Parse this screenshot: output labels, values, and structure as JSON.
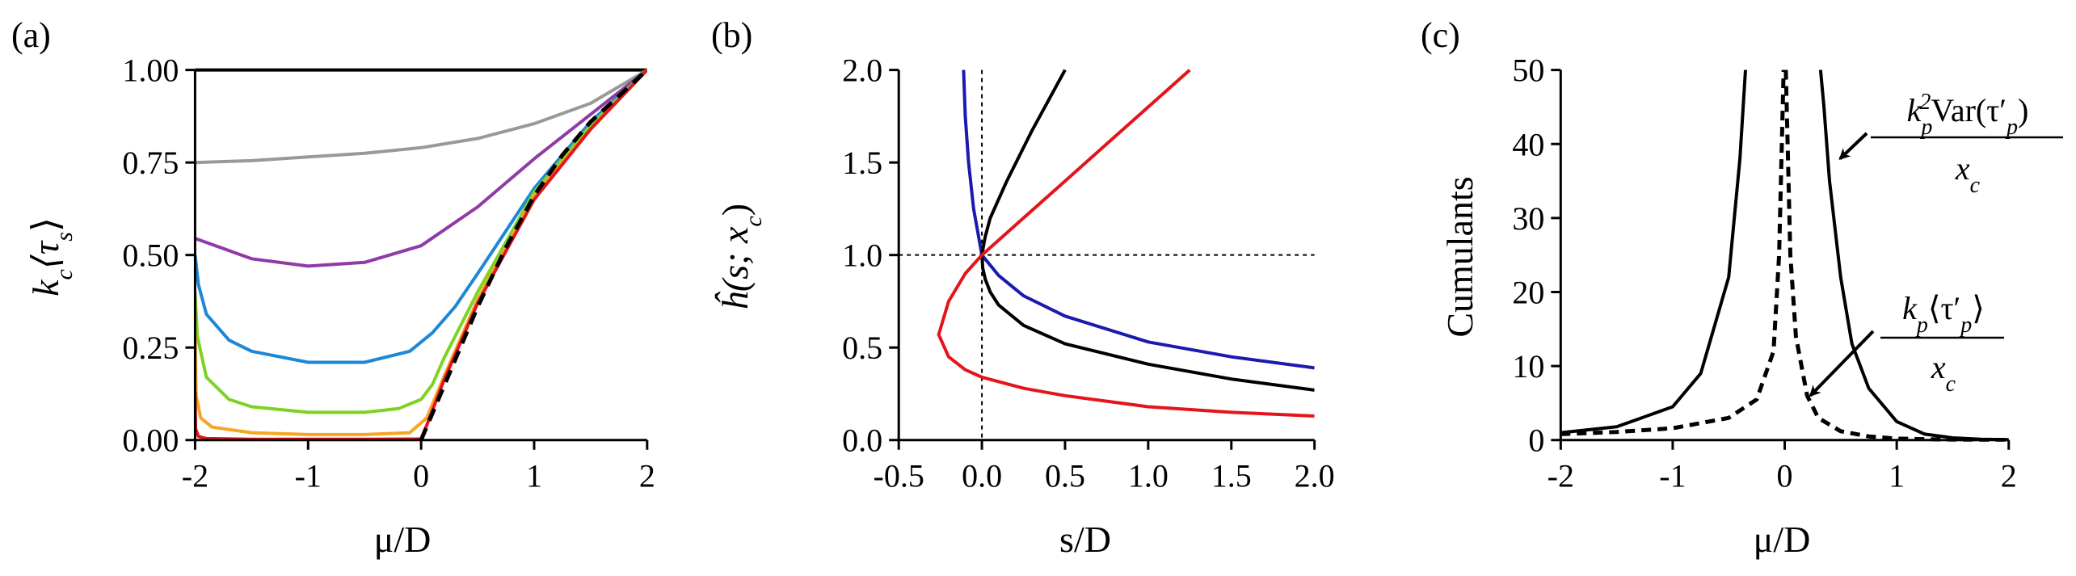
{
  "chart_data": [
    {
      "panel": "(a)",
      "type": "line",
      "xlabel": "μ/D",
      "ylabel": "k_c⟨τ_s⟩",
      "xlim": [
        -2,
        2
      ],
      "ylim": [
        0,
        1
      ],
      "xticks": [
        "-2",
        "-1",
        "0",
        "1",
        "2"
      ],
      "yticks": [
        "0.00",
        "0.25",
        "0.50",
        "0.75",
        "1.00"
      ],
      "grid": false,
      "series": [
        {
          "color": "#000000",
          "style": "solid",
          "x": [
            -2,
            -1.5,
            -1,
            -0.5,
            0,
            0.5,
            1,
            1.5,
            2
          ],
          "y": [
            1.0,
            1.0,
            1.0,
            1.0,
            1.0,
            1.0,
            1.0,
            1.0,
            1.0
          ]
        },
        {
          "color": "#999999",
          "style": "solid",
          "x": [
            -2,
            -1.5,
            -1,
            -0.5,
            0,
            0.5,
            1,
            1.5,
            2
          ],
          "y": [
            0.75,
            0.755,
            0.765,
            0.775,
            0.79,
            0.815,
            0.855,
            0.91,
            1.0
          ]
        },
        {
          "color": "#8e3aa7",
          "style": "solid",
          "x": [
            -2,
            -1.5,
            -1,
            -0.5,
            0,
            0.5,
            1,
            1.5,
            2
          ],
          "y": [
            0.545,
            0.49,
            0.47,
            0.48,
            0.525,
            0.63,
            0.76,
            0.88,
            1.0
          ]
        },
        {
          "color": "#1e88d6",
          "style": "solid",
          "x": [
            -2,
            -1.97,
            -1.9,
            -1.7,
            -1.5,
            -1,
            -0.5,
            -0.1,
            0.1,
            0.3,
            0.5,
            1,
            1.5,
            2
          ],
          "y": [
            0.5,
            0.42,
            0.34,
            0.27,
            0.24,
            0.21,
            0.21,
            0.24,
            0.29,
            0.36,
            0.45,
            0.68,
            0.86,
            1.0
          ]
        },
        {
          "color": "#7ed321",
          "style": "solid",
          "x": [
            -2,
            -1.98,
            -1.9,
            -1.7,
            -1.5,
            -1,
            -0.5,
            -0.2,
            0,
            0.1,
            0.2,
            0.5,
            1,
            1.5,
            2
          ],
          "y": [
            0.4,
            0.28,
            0.17,
            0.11,
            0.09,
            0.075,
            0.075,
            0.085,
            0.11,
            0.15,
            0.22,
            0.4,
            0.67,
            0.85,
            1.0
          ]
        },
        {
          "color": "#f5a623",
          "style": "solid",
          "x": [
            -2,
            -1.99,
            -1.95,
            -1.85,
            -1.5,
            -1,
            -0.5,
            -0.1,
            0.05,
            0.2,
            0.5,
            1,
            1.5,
            2
          ],
          "y": [
            0.3,
            0.12,
            0.06,
            0.035,
            0.02,
            0.015,
            0.015,
            0.02,
            0.06,
            0.17,
            0.38,
            0.66,
            0.84,
            1.0
          ]
        },
        {
          "color": "#e3151b",
          "style": "solid",
          "x": [
            -2,
            -1.995,
            -1.97,
            -1.9,
            -1.5,
            -1,
            -0.5,
            0,
            0.05,
            0.2,
            0.5,
            1,
            1.5,
            2
          ],
          "y": [
            0.13,
            0.03,
            0.01,
            0.004,
            0.002,
            0.002,
            0.002,
            0.003,
            0.04,
            0.16,
            0.37,
            0.65,
            0.84,
            1.0
          ]
        },
        {
          "color": "#000000",
          "style": "dashed",
          "x": [
            0,
            0.25,
            0.5,
            0.75,
            1,
            1.25,
            1.5,
            1.75,
            2
          ],
          "y": [
            0,
            0.18,
            0.36,
            0.52,
            0.66,
            0.77,
            0.86,
            0.93,
            1.0
          ]
        }
      ]
    },
    {
      "panel": "(b)",
      "type": "line",
      "xlabel": "s/D",
      "ylabel": "ĥ(s; x_c)",
      "xlim": [
        -0.5,
        2
      ],
      "ylim": [
        0,
        2
      ],
      "xticks": [
        "-0.5",
        "0.0",
        "0.5",
        "1.0",
        "1.5",
        "2.0"
      ],
      "yticks": [
        "0.0",
        "0.5",
        "1.0",
        "1.5",
        "2.0"
      ],
      "grid": false,
      "reference_lines": {
        "hline": 1.0,
        "vline": 0.0
      },
      "series": [
        {
          "color": "#1a1ab0",
          "style": "solid",
          "x": [
            -0.11,
            -0.1,
            -0.08,
            -0.05,
            0,
            0.1,
            0.25,
            0.5,
            1,
            1.5,
            2
          ],
          "y": [
            2.0,
            1.75,
            1.5,
            1.25,
            1.0,
            0.89,
            0.78,
            0.67,
            0.53,
            0.45,
            0.39
          ]
        },
        {
          "color": "#000000",
          "style": "solid",
          "x": [
            0.5,
            0.3,
            0.15,
            0.05,
            0.02,
            0.01,
            0.0,
            0.005,
            0.02,
            0.05,
            0.1,
            0.25,
            0.5,
            1,
            1.5,
            2
          ],
          "y": [
            2.0,
            1.67,
            1.4,
            1.2,
            1.1,
            1.05,
            1.0,
            0.93,
            0.87,
            0.8,
            0.73,
            0.62,
            0.52,
            0.41,
            0.33,
            0.27
          ]
        },
        {
          "color": "#e3151b",
          "style": "solid",
          "x": [
            1.25,
            1.0,
            0.75,
            0.5,
            0.25,
            0.1,
            0.0,
            -0.1,
            -0.2,
            -0.26,
            -0.2,
            -0.1,
            0,
            0.25,
            0.5,
            1,
            1.5,
            2
          ],
          "y": [
            2.0,
            1.8,
            1.6,
            1.4,
            1.2,
            1.08,
            1.0,
            0.9,
            0.75,
            0.57,
            0.45,
            0.38,
            0.34,
            0.28,
            0.24,
            0.18,
            0.15,
            0.13
          ]
        }
      ]
    },
    {
      "panel": "(c)",
      "type": "line",
      "xlabel": "μ/D",
      "ylabel": "Cumulants",
      "xlim": [
        -2,
        2
      ],
      "ylim": [
        0,
        50
      ],
      "xticks": [
        "-2",
        "-1",
        "0",
        "1",
        "2"
      ],
      "yticks": [
        "0",
        "10",
        "20",
        "30",
        "40",
        "50"
      ],
      "grid": false,
      "series": [
        {
          "color": "#000000",
          "style": "solid",
          "x": [
            -2,
            -1.5,
            -1,
            -0.75,
            -0.5,
            -0.4,
            -0.35
          ],
          "y": [
            1,
            1.8,
            4.5,
            9,
            22,
            38,
            50
          ]
        },
        {
          "color": "#000000",
          "style": "solid",
          "x": [
            0.32,
            0.35,
            0.4,
            0.5,
            0.6,
            0.75,
            1,
            1.25,
            1.5,
            1.75,
            2
          ],
          "y": [
            50,
            45,
            35,
            22,
            13,
            7,
            2.5,
            0.8,
            0.3,
            0.1,
            0.05
          ]
        },
        {
          "color": "#000000",
          "style": "dashed",
          "x": [
            -2,
            -1.5,
            -1,
            -0.5,
            -0.25,
            -0.1,
            -0.05,
            -0.01
          ],
          "y": [
            0.8,
            1.1,
            1.6,
            3,
            5.5,
            12,
            25,
            50
          ]
        },
        {
          "color": "#000000",
          "style": "dashed",
          "x": [
            0.01,
            0.05,
            0.1,
            0.2,
            0.3,
            0.5,
            0.75,
            1,
            1.5,
            2
          ],
          "y": [
            50,
            25,
            14,
            6,
            3,
            1.2,
            0.5,
            0.2,
            0.05,
            0.02
          ]
        }
      ],
      "annotations": [
        {
          "text_parts": [
            "k",
            "p",
            "2",
            "Var(τ′",
            "p",
            ")"
          ],
          "denominator": "x_c",
          "points_to_x": 0.45,
          "points_to_y": 38
        },
        {
          "text_parts": [
            "k",
            "p",
            "⟨τ′",
            "p",
            "⟩"
          ],
          "denominator": "x_c",
          "points_to_x": 0.2,
          "points_to_y": 6
        }
      ]
    }
  ],
  "labels": {
    "panel_a": "(a)",
    "panel_b": "(b)",
    "panel_c": "(c)",
    "a_xlabel": "μ/D",
    "b_xlabel": "s/D",
    "c_xlabel": "μ/D",
    "c_ylabel": "Cumulants",
    "a_ylabel_k": "k",
    "a_ylabel_c": "c",
    "a_ylabel_tau": "⟨τ",
    "a_ylabel_s": "s",
    "a_ylabel_close": "⟩",
    "b_ylabel_main": "ĥ(s; x",
    "b_ylabel_c": "c",
    "b_ylabel_close": ")",
    "annot1_k": "k",
    "annot1_p": "p",
    "annot1_2": "2",
    "annot1_var": "Var(τ′",
    "annot1_p2": "p",
    "annot1_close": ")",
    "annot1_den": "x",
    "annot1_den_c": "c",
    "annot2_k": "k",
    "annot2_p": "p",
    "annot2_tau": "⟨τ′",
    "annot2_p2": "p",
    "annot2_close": "⟩",
    "annot2_den": "x",
    "annot2_den_c": "c"
  }
}
